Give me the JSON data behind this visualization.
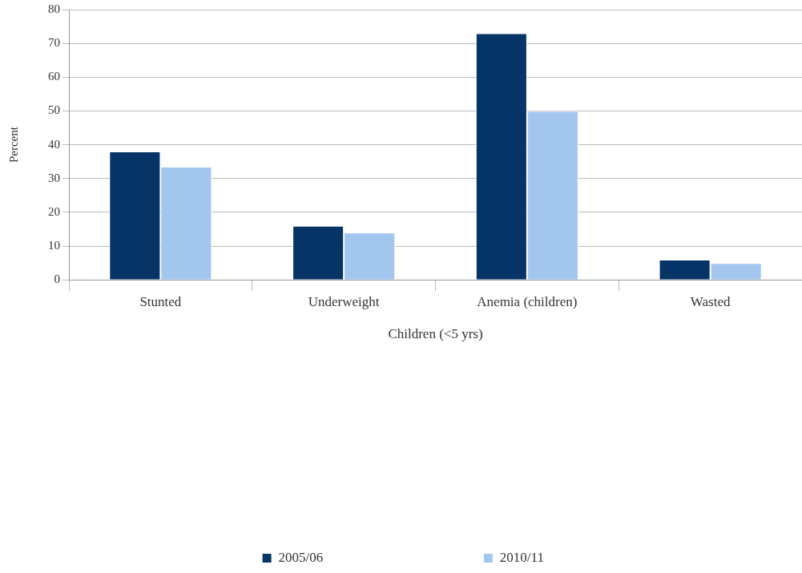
{
  "chart_data": {
    "type": "bar",
    "xlabel": "Children (<5 yrs)",
    "ylabel": "Percent",
    "categories": [
      "Stunted",
      "Underweight",
      "Anemia (children)",
      "Wasted"
    ],
    "series": [
      {
        "name": "2005/06",
        "color": "#063466",
        "values": [
          38,
          16,
          73,
          6
        ]
      },
      {
        "name": "2010/11",
        "color": "#a3c6ef",
        "values": [
          33.5,
          14,
          50,
          5
        ]
      }
    ],
    "ylim": [
      0,
      80
    ],
    "yticks": [
      0,
      10,
      20,
      30,
      40,
      50,
      60,
      70,
      80
    ],
    "grid": "y",
    "legend": "bottom"
  }
}
